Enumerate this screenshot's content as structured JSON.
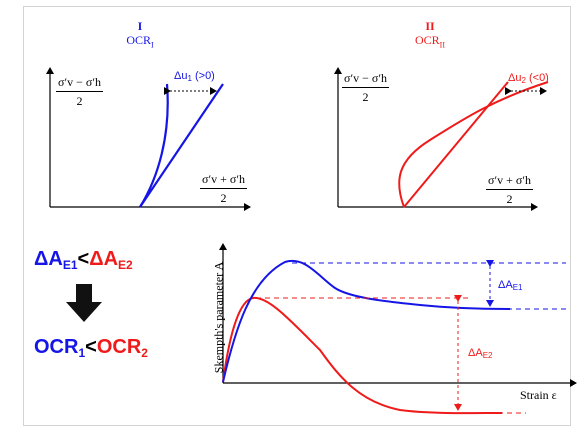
{
  "panel_1": {
    "roman": "I",
    "subtitle_base": "OCR",
    "subtitle_sub": "I",
    "y_numerator": "σ′v − σ′h",
    "y_denominator": "2",
    "x_numerator": "σ′v + σ′h",
    "x_denominator": "2",
    "delta_base": "Δu",
    "delta_sub": "1",
    "delta_tail": " (>0)"
  },
  "panel_2": {
    "roman": "II",
    "subtitle_base": "OCR",
    "subtitle_sub": "II",
    "y_numerator": "σ′v − σ′h",
    "y_denominator": "2",
    "x_numerator": "σ′v + σ′h",
    "x_denominator": "2",
    "delta_base": "Δu",
    "delta_sub": "2",
    "delta_tail": " (<0)"
  },
  "comparison": {
    "delta_a_e1_base": "ΔA",
    "delta_a_e1_sub": "E1",
    "less_than": "<",
    "delta_a_e2_base": "ΔA",
    "delta_a_e2_sub": "E2",
    "ocr1_base": "OCR",
    "ocr1_sub": "1",
    "ocr2_base": "OCR",
    "ocr2_sub": "2"
  },
  "skempton_plot": {
    "y_axis_label": "Skempth's parameter  A",
    "x_axis_label": "Strain ε",
    "delta_ae1_base": "ΔA",
    "delta_ae1_sub": "E1",
    "delta_ae2_base": "ΔA",
    "delta_ae2_sub": "E2"
  },
  "colors": {
    "blue": "#1515e6",
    "red": "#ef1b1b",
    "black": "#000000"
  }
}
